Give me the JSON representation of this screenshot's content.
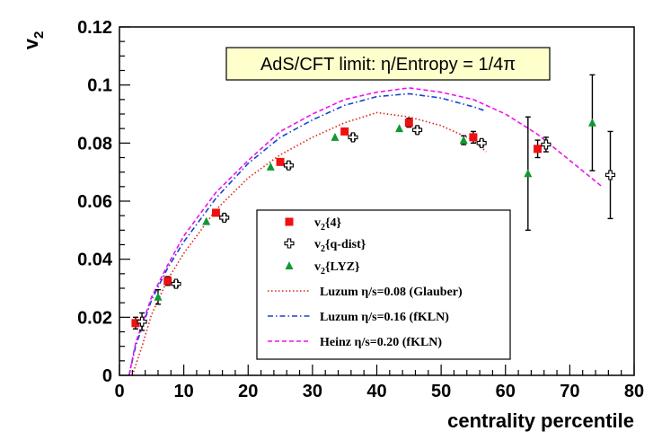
{
  "chart_data": {
    "type": "scatter",
    "title": "",
    "xlabel": "centrality percentile",
    "ylabel": "v",
    "ylabel_sub": "2",
    "xlim": [
      0,
      80
    ],
    "ylim": [
      0,
      0.12
    ],
    "grid": false,
    "legend_position": "bottom-center",
    "x_ticks": [
      "0",
      "10",
      "20",
      "30",
      "40",
      "50",
      "60",
      "70",
      "80"
    ],
    "y_ticks": [
      "0",
      "0.02",
      "0.04",
      "0.06",
      "0.08",
      "0.1",
      "0.12"
    ],
    "annotation": "AdS/CFT limit: η/Entropy = 1/4π",
    "series": [
      {
        "name": "v",
        "name_sub": "2",
        "name_suffix": "{4}",
        "marker": "square",
        "color": "#ee1111",
        "points": [
          {
            "x": 2.5,
            "y": 0.018,
            "err": 0.002
          },
          {
            "x": 7.5,
            "y": 0.0325,
            "err": 0.0015
          },
          {
            "x": 15,
            "y": 0.056,
            "err": 0.001
          },
          {
            "x": 25,
            "y": 0.0735,
            "err": 0.001
          },
          {
            "x": 35,
            "y": 0.084,
            "err": 0.001
          },
          {
            "x": 45,
            "y": 0.087,
            "err": 0.0015
          },
          {
            "x": 55,
            "y": 0.082,
            "err": 0.002
          },
          {
            "x": 65,
            "y": 0.078,
            "err": 0.003
          }
        ]
      },
      {
        "name": "v",
        "name_sub": "2",
        "name_suffix": "{q-dist}",
        "marker": "cross-open",
        "color": "#000000",
        "points": [
          {
            "x": 3.5,
            "y": 0.0185,
            "err": 0.003
          },
          {
            "x": 8.8,
            "y": 0.0315,
            "err": 0.001
          },
          {
            "x": 16.3,
            "y": 0.0543,
            "err": 0.001
          },
          {
            "x": 26.3,
            "y": 0.0723,
            "err": 0.001
          },
          {
            "x": 36.3,
            "y": 0.082,
            "err": 0.001
          },
          {
            "x": 46.3,
            "y": 0.0845,
            "err": 0.001
          },
          {
            "x": 56.3,
            "y": 0.08,
            "err": 0.001
          },
          {
            "x": 66.3,
            "y": 0.0795,
            "err": 0.0025
          },
          {
            "x": 76.3,
            "y": 0.069,
            "err": 0.015
          }
        ]
      },
      {
        "name": "v",
        "name_sub": "2",
        "name_suffix": "{LYZ}",
        "marker": "triangle",
        "color": "#119933",
        "points": [
          {
            "x": 6,
            "y": 0.027,
            "err": 0.0025
          },
          {
            "x": 13.5,
            "y": 0.053,
            "err": 0.0
          },
          {
            "x": 23.5,
            "y": 0.0718,
            "err": 0.0
          },
          {
            "x": 33.5,
            "y": 0.082,
            "err": 0.0
          },
          {
            "x": 43.5,
            "y": 0.085,
            "err": 0.0
          },
          {
            "x": 53.5,
            "y": 0.081,
            "err": 0.0015
          },
          {
            "x": 63.5,
            "y": 0.0695,
            "err": 0.0195
          },
          {
            "x": 73.5,
            "y": 0.087,
            "err": 0.0165
          }
        ]
      },
      {
        "name": "Luzum η/s=0.08 (Glauber)",
        "line": "dotted",
        "color": "#dd2211",
        "x": [
          2,
          3.5,
          5,
          7.5,
          10,
          15,
          20,
          25,
          30,
          35,
          40,
          45,
          50,
          55,
          57
        ],
        "y": [
          0.0,
          0.01,
          0.021,
          0.033,
          0.042,
          0.057,
          0.068,
          0.076,
          0.082,
          0.087,
          0.0905,
          0.089,
          0.086,
          0.081,
          0.077
        ]
      },
      {
        "name": "Luzum η/s=0.16 (fKLN)",
        "line": "dashdot",
        "color": "#1144cc",
        "x": [
          1.5,
          2.5,
          5,
          7.5,
          10,
          15,
          20,
          25,
          30,
          35,
          40,
          45,
          50,
          55,
          57
        ],
        "y": [
          0.0,
          0.01,
          0.026,
          0.037,
          0.046,
          0.061,
          0.073,
          0.082,
          0.088,
          0.093,
          0.096,
          0.097,
          0.0955,
          0.0925,
          0.091
        ]
      },
      {
        "name": "Heinz η/s=0.20 (fKLN)",
        "line": "dashed",
        "color": "#ee11ee",
        "x": [
          1.5,
          2.5,
          5,
          7.5,
          10,
          15,
          20,
          25,
          30,
          35,
          40,
          45,
          50,
          55,
          60,
          65,
          70,
          75
        ],
        "y": [
          0.0,
          0.011,
          0.027,
          0.038,
          0.048,
          0.063,
          0.074,
          0.084,
          0.09,
          0.095,
          0.0975,
          0.099,
          0.0975,
          0.095,
          0.09,
          0.083,
          0.074,
          0.065
        ]
      }
    ]
  }
}
